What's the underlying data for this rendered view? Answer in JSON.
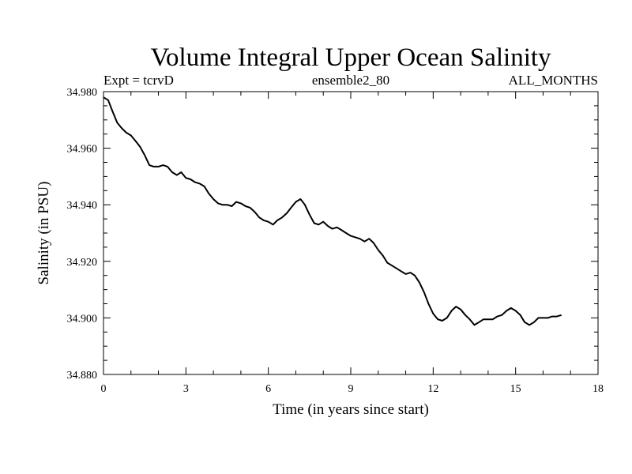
{
  "chart_data": {
    "type": "line",
    "title": "Volume Integral Upper Ocean Salinity",
    "subtitle_left": "Expt = tcrvD",
    "subtitle_center": "ensemble2_80",
    "subtitle_right": "ALL_MONTHS",
    "xlabel": "Time (in years since start)",
    "ylabel": "Salinity (in PSU)",
    "xlim": [
      0,
      18
    ],
    "ylim": [
      34.88,
      34.98
    ],
    "x_ticks": [
      0,
      3,
      6,
      9,
      12,
      15,
      18
    ],
    "x_tick_labels": [
      "0",
      "3",
      "6",
      "9",
      "12",
      "15",
      "18"
    ],
    "y_ticks": [
      34.88,
      34.9,
      34.92,
      34.94,
      34.96,
      34.98
    ],
    "y_tick_labels": [
      "34.880",
      "34.900",
      "34.920",
      "34.940",
      "34.960",
      "34.980"
    ],
    "grid": false,
    "series": [
      {
        "name": "Salinity",
        "x": [
          0.0,
          0.17,
          0.33,
          0.5,
          0.67,
          0.83,
          1.0,
          1.17,
          1.33,
          1.5,
          1.67,
          1.83,
          2.0,
          2.17,
          2.33,
          2.5,
          2.67,
          2.83,
          3.0,
          3.17,
          3.33,
          3.5,
          3.67,
          3.83,
          4.0,
          4.17,
          4.33,
          4.5,
          4.67,
          4.83,
          5.0,
          5.17,
          5.33,
          5.5,
          5.67,
          5.83,
          6.0,
          6.17,
          6.33,
          6.5,
          6.67,
          6.83,
          7.0,
          7.17,
          7.33,
          7.5,
          7.67,
          7.83,
          8.0,
          8.17,
          8.33,
          8.5,
          8.67,
          8.83,
          9.0,
          9.17,
          9.33,
          9.5,
          9.67,
          9.83,
          10.0,
          10.17,
          10.33,
          10.5,
          10.67,
          10.83,
          11.0,
          11.17,
          11.33,
          11.5,
          11.67,
          11.83,
          12.0,
          12.17,
          12.33,
          12.5,
          12.67,
          12.83,
          13.0,
          13.17,
          13.33,
          13.5,
          13.67,
          13.83,
          14.0,
          14.17,
          14.33,
          14.5,
          14.67,
          14.83,
          15.0,
          15.17,
          15.33,
          15.5,
          15.67,
          15.83,
          16.0,
          16.17,
          16.33,
          16.5,
          16.67
        ],
        "values": [
          34.978,
          34.977,
          34.973,
          34.969,
          34.967,
          34.9655,
          34.9645,
          34.9625,
          34.9605,
          34.9575,
          34.954,
          34.9535,
          34.9535,
          34.954,
          34.9535,
          34.9515,
          34.9505,
          34.9515,
          34.9495,
          34.949,
          34.948,
          34.9475,
          34.9465,
          34.944,
          34.942,
          34.9405,
          34.94,
          34.94,
          34.9395,
          34.941,
          34.9405,
          34.9395,
          34.939,
          34.9375,
          34.9355,
          34.9345,
          34.934,
          34.933,
          34.9345,
          34.9355,
          34.937,
          34.939,
          34.941,
          34.942,
          34.94,
          34.9365,
          34.9335,
          34.933,
          34.934,
          34.9325,
          34.9315,
          34.932,
          34.931,
          34.93,
          34.929,
          34.9285,
          34.928,
          34.927,
          34.928,
          34.9265,
          34.924,
          34.922,
          34.9195,
          34.9185,
          34.9175,
          34.9165,
          34.9155,
          34.916,
          34.915,
          34.9125,
          34.909,
          34.905,
          34.9015,
          34.8995,
          34.899,
          34.9,
          34.9025,
          34.904,
          34.903,
          34.901,
          34.8995,
          34.8975,
          34.8985,
          34.8995,
          34.8995,
          34.8995,
          34.9005,
          34.901,
          34.9025,
          34.9035,
          34.9025,
          34.901,
          34.8985,
          34.8975,
          34.8985,
          34.9,
          34.9,
          34.9,
          34.9005,
          34.9005,
          34.901
        ]
      }
    ]
  }
}
